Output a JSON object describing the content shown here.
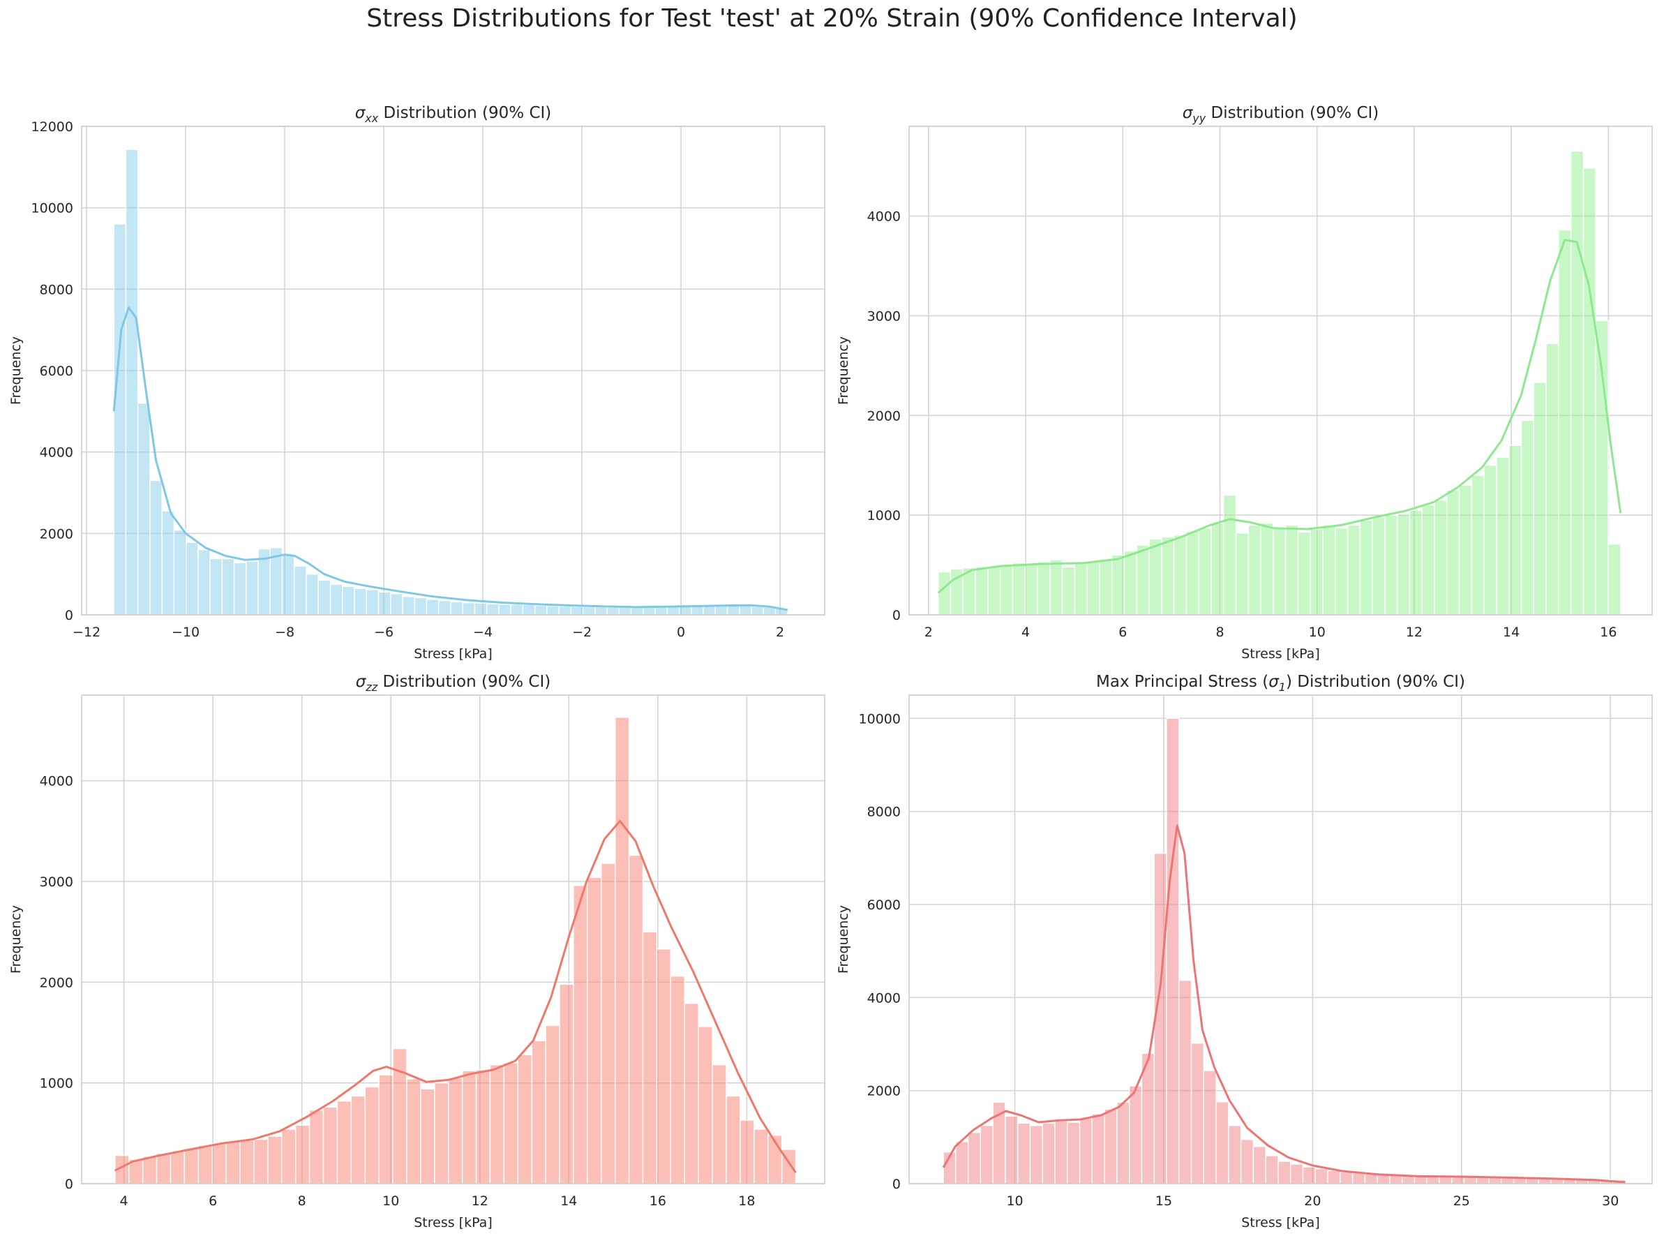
{
  "figure": {
    "suptitle": "Stress Distributions for Test 'test' at 20% Strain (90% Confidence Interval)"
  },
  "chart_data": [
    {
      "type": "bar",
      "subtype": "histogram-with-kde",
      "title_symbol": "σ",
      "title_subscript": "xx",
      "title_rest": " Distribution (90% CI)",
      "xlabel": "Stress [kPa]",
      "ylabel": "Frequency",
      "color": "#87ceeb",
      "kde_color": "#7ec8e3",
      "grid": true,
      "xlim": [
        -12.1,
        2.9
      ],
      "ylim": [
        0,
        12000
      ],
      "xticks": [
        -12,
        -10,
        -8,
        -6,
        -4,
        -2,
        0,
        2
      ],
      "xtick_labels": [
        "−12",
        "−10",
        "−8",
        "−6",
        "−4",
        "−2",
        "0",
        "2"
      ],
      "yticks": [
        0,
        2000,
        4000,
        6000,
        8000,
        10000,
        12000
      ],
      "ytick_labels": [
        "0",
        "2000",
        "4000",
        "6000",
        "8000",
        "10000",
        "12000"
      ],
      "bin_range": [
        -11.45,
        2.15
      ],
      "values": [
        9600,
        11430,
        5200,
        3300,
        2550,
        2080,
        1780,
        1600,
        1380,
        1380,
        1280,
        1320,
        1620,
        1650,
        1470,
        1200,
        1000,
        850,
        750,
        700,
        650,
        620,
        560,
        520,
        450,
        420,
        380,
        350,
        320,
        300,
        290,
        270,
        260,
        255,
        250,
        230,
        220,
        210,
        200,
        195,
        190,
        185,
        180,
        180,
        185,
        190,
        200,
        210,
        220,
        230,
        235,
        230,
        220,
        205,
        190,
        160
      ],
      "kde": [
        [
          -11.45,
          5000
        ],
        [
          -11.3,
          7000
        ],
        [
          -11.15,
          7550
        ],
        [
          -11.0,
          7300
        ],
        [
          -10.8,
          5500
        ],
        [
          -10.6,
          3800
        ],
        [
          -10.3,
          2500
        ],
        [
          -10.0,
          2000
        ],
        [
          -9.6,
          1650
        ],
        [
          -9.2,
          1450
        ],
        [
          -8.8,
          1350
        ],
        [
          -8.4,
          1380
        ],
        [
          -8.0,
          1480
        ],
        [
          -7.8,
          1450
        ],
        [
          -7.5,
          1250
        ],
        [
          -7.2,
          1000
        ],
        [
          -6.8,
          820
        ],
        [
          -6.3,
          700
        ],
        [
          -5.7,
          580
        ],
        [
          -5.0,
          450
        ],
        [
          -4.3,
          360
        ],
        [
          -3.6,
          300
        ],
        [
          -2.9,
          260
        ],
        [
          -2.2,
          230
        ],
        [
          -1.5,
          205
        ],
        [
          -0.9,
          190
        ],
        [
          -0.3,
          200
        ],
        [
          0.3,
          215
        ],
        [
          0.9,
          230
        ],
        [
          1.4,
          235
        ],
        [
          1.8,
          200
        ],
        [
          2.15,
          120
        ]
      ]
    },
    {
      "type": "bar",
      "subtype": "histogram-with-kde",
      "title_symbol": "σ",
      "title_subscript": "yy",
      "title_rest": " Distribution (90% CI)",
      "xlabel": "Stress [kPa]",
      "ylabel": "Frequency",
      "color": "#90ee90",
      "kde_color": "#8ee88e",
      "grid": true,
      "xlim": [
        1.6,
        16.9
      ],
      "ylim": [
        0,
        4900
      ],
      "xticks": [
        2,
        4,
        6,
        8,
        10,
        12,
        14,
        16
      ],
      "xtick_labels": [
        "2",
        "4",
        "6",
        "8",
        "10",
        "12",
        "14",
        "16"
      ],
      "yticks": [
        0,
        1000,
        2000,
        3000,
        4000
      ],
      "ytick_labels": [
        "0",
        "1000",
        "2000",
        "3000",
        "4000"
      ],
      "bin_range": [
        2.2,
        16.25
      ],
      "values": [
        430,
        460,
        470,
        480,
        490,
        500,
        520,
        510,
        530,
        550,
        480,
        520,
        540,
        560,
        600,
        640,
        700,
        760,
        780,
        800,
        840,
        870,
        920,
        1200,
        820,
        900,
        920,
        880,
        900,
        830,
        860,
        900,
        870,
        900,
        950,
        980,
        1000,
        1010,
        1050,
        1100,
        1150,
        1250,
        1300,
        1400,
        1500,
        1580,
        1700,
        1950,
        2330,
        2720,
        3860,
        4650,
        4480,
        2950,
        710
      ],
      "kde": [
        [
          2.2,
          220
        ],
        [
          2.5,
          350
        ],
        [
          2.9,
          450
        ],
        [
          3.5,
          490
        ],
        [
          4.3,
          510
        ],
        [
          5.2,
          520
        ],
        [
          5.9,
          560
        ],
        [
          6.5,
          660
        ],
        [
          7.2,
          780
        ],
        [
          7.8,
          900
        ],
        [
          8.2,
          960
        ],
        [
          8.6,
          930
        ],
        [
          9.1,
          870
        ],
        [
          9.8,
          860
        ],
        [
          10.5,
          900
        ],
        [
          11.2,
          980
        ],
        [
          11.8,
          1040
        ],
        [
          12.4,
          1130
        ],
        [
          12.9,
          1280
        ],
        [
          13.4,
          1480
        ],
        [
          13.8,
          1750
        ],
        [
          14.2,
          2200
        ],
        [
          14.5,
          2750
        ],
        [
          14.8,
          3350
        ],
        [
          15.1,
          3760
        ],
        [
          15.35,
          3740
        ],
        [
          15.6,
          3300
        ],
        [
          15.85,
          2500
        ],
        [
          16.05,
          1700
        ],
        [
          16.25,
          1020
        ]
      ]
    },
    {
      "type": "bar",
      "subtype": "histogram-with-kde",
      "title_symbol": "σ",
      "title_subscript": "zz",
      "title_rest": " Distribution (90% CI)",
      "xlabel": "Stress [kPa]",
      "ylabel": "Frequency",
      "color": "#fa8072",
      "kde_color": "#f0786a",
      "grid": true,
      "xlim": [
        3.05,
        19.75
      ],
      "ylim": [
        0,
        4850
      ],
      "xticks": [
        4,
        6,
        8,
        10,
        12,
        14,
        16,
        18
      ],
      "xtick_labels": [
        "4",
        "6",
        "8",
        "10",
        "12",
        "14",
        "16",
        "18"
      ],
      "yticks": [
        0,
        1000,
        2000,
        3000,
        4000
      ],
      "ytick_labels": [
        "0",
        "1000",
        "2000",
        "3000",
        "4000"
      ],
      "bin_range": [
        3.8,
        19.1
      ],
      "values": [
        280,
        240,
        270,
        300,
        320,
        350,
        380,
        400,
        420,
        430,
        440,
        470,
        540,
        580,
        730,
        760,
        820,
        870,
        960,
        1080,
        1340,
        1040,
        940,
        1000,
        1050,
        1120,
        1130,
        1180,
        1200,
        1280,
        1420,
        1570,
        1980,
        2960,
        3040,
        3180,
        4630,
        3260,
        2500,
        2330,
        2060,
        1790,
        1560,
        1180,
        870,
        630,
        540,
        480,
        340
      ],
      "kde": [
        [
          3.8,
          130
        ],
        [
          4.2,
          220
        ],
        [
          4.8,
          280
        ],
        [
          5.5,
          340
        ],
        [
          6.2,
          400
        ],
        [
          6.9,
          440
        ],
        [
          7.5,
          520
        ],
        [
          8.1,
          660
        ],
        [
          8.7,
          820
        ],
        [
          9.2,
          980
        ],
        [
          9.6,
          1120
        ],
        [
          9.9,
          1160
        ],
        [
          10.3,
          1100
        ],
        [
          10.8,
          1010
        ],
        [
          11.3,
          1030
        ],
        [
          11.8,
          1090
        ],
        [
          12.3,
          1130
        ],
        [
          12.8,
          1220
        ],
        [
          13.2,
          1420
        ],
        [
          13.6,
          1850
        ],
        [
          14.0,
          2450
        ],
        [
          14.4,
          3000
        ],
        [
          14.8,
          3420
        ],
        [
          15.15,
          3600
        ],
        [
          15.5,
          3400
        ],
        [
          15.9,
          2950
        ],
        [
          16.3,
          2550
        ],
        [
          16.8,
          2100
        ],
        [
          17.3,
          1600
        ],
        [
          17.8,
          1100
        ],
        [
          18.3,
          650
        ],
        [
          18.7,
          370
        ],
        [
          19.1,
          110
        ]
      ]
    },
    {
      "type": "bar",
      "subtype": "histogram-with-kde",
      "title_prefix": "Max Principal Stress (",
      "title_symbol": "σ",
      "title_subscript": "1",
      "title_rest": ") Distribution (90% CI)",
      "xlabel": "Stress [kPa]",
      "ylabel": "Frequency",
      "color": "#f08080",
      "kde_color": "#ec7474",
      "grid": true,
      "xlim": [
        6.45,
        31.4
      ],
      "ylim": [
        0,
        10500
      ],
      "xticks": [
        10,
        15,
        20,
        25,
        30
      ],
      "xtick_labels": [
        "10",
        "15",
        "20",
        "25",
        "30"
      ],
      "yticks": [
        0,
        2000,
        4000,
        6000,
        8000,
        10000
      ],
      "ytick_labels": [
        "0",
        "2000",
        "4000",
        "6000",
        "8000",
        "10000"
      ],
      "bin_range": [
        7.6,
        30.5
      ],
      "values": [
        680,
        900,
        1100,
        1250,
        1750,
        1450,
        1300,
        1250,
        1300,
        1350,
        1320,
        1400,
        1500,
        1600,
        1750,
        2100,
        2800,
        7100,
        10000,
        4370,
        3020,
        2430,
        1760,
        1250,
        950,
        800,
        600,
        480,
        420,
        360,
        320,
        280,
        250,
        230,
        210,
        200,
        190,
        180,
        170,
        160,
        160,
        150,
        140,
        130,
        125,
        120,
        115,
        110,
        110,
        105,
        100,
        95,
        90,
        85,
        80
      ],
      "kde": [
        [
          7.6,
          350
        ],
        [
          8.0,
          800
        ],
        [
          8.6,
          1150
        ],
        [
          9.2,
          1400
        ],
        [
          9.7,
          1560
        ],
        [
          10.2,
          1470
        ],
        [
          10.8,
          1320
        ],
        [
          11.5,
          1360
        ],
        [
          12.2,
          1380
        ],
        [
          12.9,
          1470
        ],
        [
          13.5,
          1650
        ],
        [
          14.0,
          1950
        ],
        [
          14.5,
          2700
        ],
        [
          14.9,
          4300
        ],
        [
          15.2,
          6500
        ],
        [
          15.45,
          7700
        ],
        [
          15.7,
          7100
        ],
        [
          16.0,
          4800
        ],
        [
          16.3,
          3300
        ],
        [
          16.7,
          2500
        ],
        [
          17.2,
          1800
        ],
        [
          17.8,
          1200
        ],
        [
          18.5,
          820
        ],
        [
          19.2,
          560
        ],
        [
          20.0,
          390
        ],
        [
          21.0,
          270
        ],
        [
          22.2,
          200
        ],
        [
          23.5,
          160
        ],
        [
          25.0,
          150
        ],
        [
          26.5,
          130
        ],
        [
          28.0,
          110
        ],
        [
          29.5,
          80
        ],
        [
          30.5,
          30
        ]
      ]
    }
  ]
}
